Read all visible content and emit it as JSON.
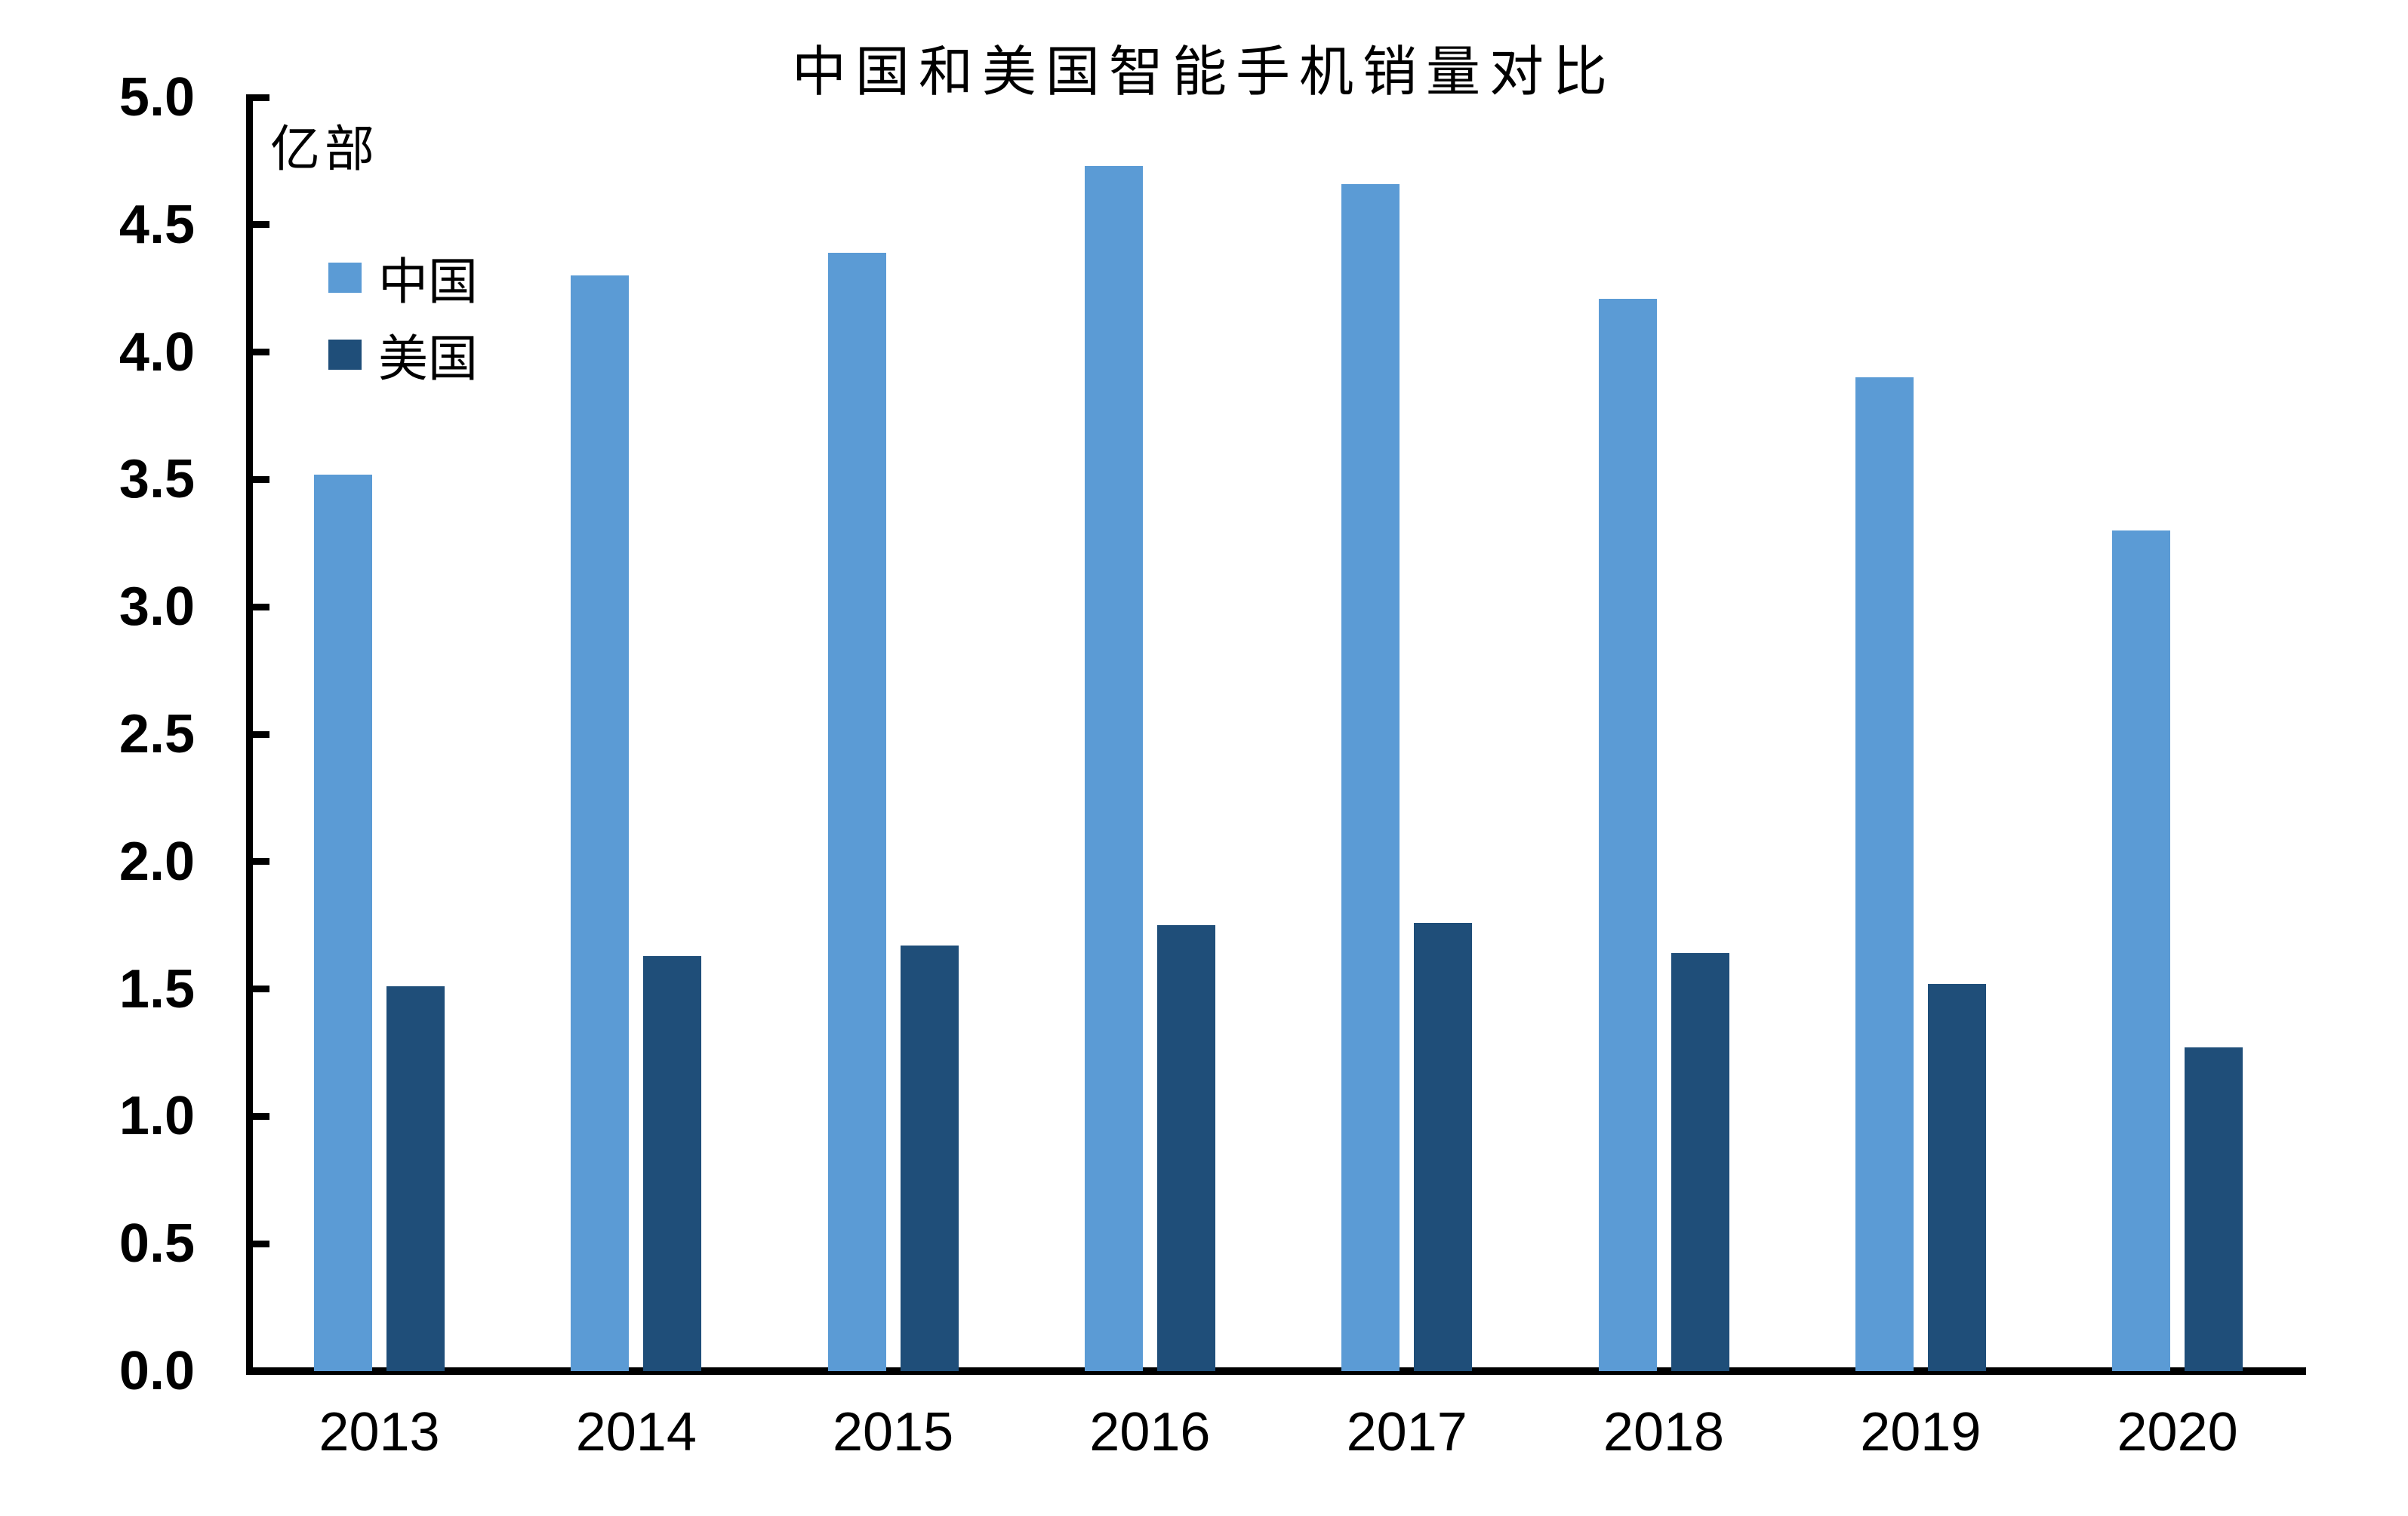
{
  "chart_data": {
    "type": "bar",
    "title": "中国和美国智能手机销量对比",
    "unit_label": "亿部",
    "categories": [
      "2013",
      "2014",
      "2015",
      "2016",
      "2017",
      "2018",
      "2019",
      "2020"
    ],
    "series": [
      {
        "name": "中国",
        "color": "#5B9BD5",
        "values": [
          3.52,
          4.3,
          4.39,
          4.73,
          4.66,
          4.21,
          3.9,
          3.3
        ]
      },
      {
        "name": "美国",
        "color": "#1F4E79",
        "values": [
          1.51,
          1.63,
          1.67,
          1.75,
          1.76,
          1.64,
          1.52,
          1.27
        ]
      }
    ],
    "xlabel": "",
    "ylabel": "亿部",
    "ylim": [
      0.0,
      5.0
    ],
    "ytick_step": 0.5,
    "ytick_labels": [
      "0.0",
      "0.5",
      "1.0",
      "1.5",
      "2.0",
      "2.5",
      "3.0",
      "3.5",
      "4.0",
      "4.5",
      "5.0"
    ],
    "grid": false,
    "legend_position": "upper-left-inside",
    "axis_color": "#000000",
    "background_color": "#FFFFFF"
  }
}
